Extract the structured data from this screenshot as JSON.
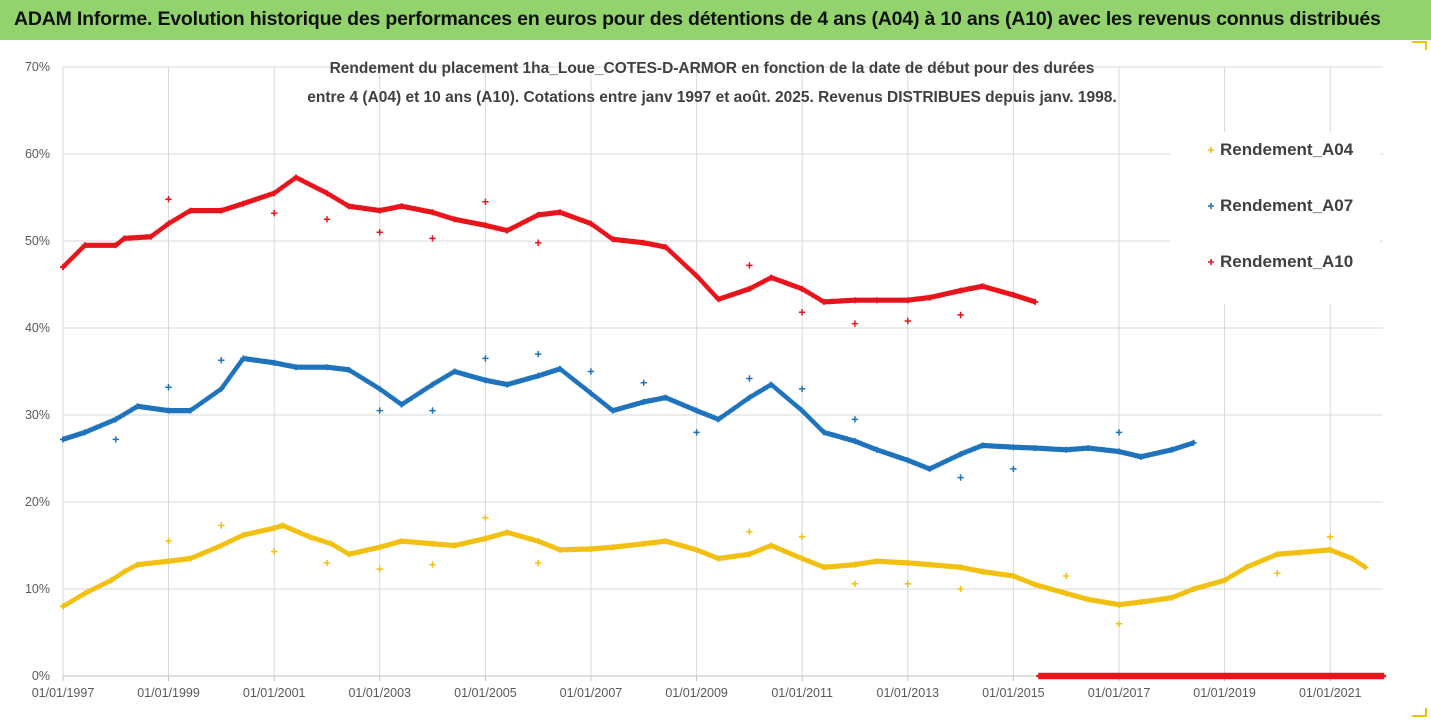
{
  "banner": {
    "title": "ADAM Informe. Evolution historique des performances en euros pour des détentions de 4 ans (A04) à 10 ans (A10) avec les revenus connus distribués"
  },
  "chart_data": {
    "type": "scatter",
    "title": "Rendement du placement 1ha_Loue_COTES-D-ARMOR en fonction de la date de début pour des durées",
    "subtitle": "entre 4 (A04) et 10 ans (A10). Cotations entre janv 1997 et août. 2025. Revenus DISTRIBUES depuis janv. 1998.",
    "xlabel": "",
    "ylabel": "",
    "x_range": [
      "1997-01-01",
      "2022-01-01"
    ],
    "ylim": [
      0,
      70
    ],
    "y_ticks": [
      "0%",
      "10%",
      "20%",
      "30%",
      "40%",
      "50%",
      "60%",
      "70%"
    ],
    "x_ticks": [
      "01/01/1997",
      "01/01/1999",
      "01/01/2001",
      "01/01/2003",
      "01/01/2005",
      "01/01/2007",
      "01/01/2009",
      "01/01/2011",
      "01/01/2013",
      "01/01/2015",
      "01/01/2017",
      "01/01/2019",
      "01/01/2021"
    ],
    "grid": true,
    "legend_position": "right",
    "series": [
      {
        "name": "Rendement_A04",
        "color": "#f2c010",
        "points": [
          [
            "1997-01",
            8.0
          ],
          [
            "1997-06",
            9.5
          ],
          [
            "1997-12",
            11.0
          ],
          [
            "1998-03",
            12.0
          ],
          [
            "1998-06",
            12.8
          ],
          [
            "1999-01",
            13.2
          ],
          [
            "1999-06",
            13.5
          ],
          [
            "2000-01",
            15.0
          ],
          [
            "2000-06",
            16.2
          ],
          [
            "2001-01",
            17.0
          ],
          [
            "2001-03",
            17.3
          ],
          [
            "2001-09",
            16.0
          ],
          [
            "2002-02",
            15.2
          ],
          [
            "2002-06",
            14.0
          ],
          [
            "2003-01",
            14.8
          ],
          [
            "2003-06",
            15.5
          ],
          [
            "2004-01",
            15.2
          ],
          [
            "2004-06",
            15.0
          ],
          [
            "2005-01",
            15.8
          ],
          [
            "2005-06",
            16.5
          ],
          [
            "2006-01",
            15.5
          ],
          [
            "2006-06",
            14.5
          ],
          [
            "2007-01",
            14.6
          ],
          [
            "2007-06",
            14.8
          ],
          [
            "2008-01",
            15.2
          ],
          [
            "2008-06",
            15.5
          ],
          [
            "2009-01",
            14.5
          ],
          [
            "2009-06",
            13.5
          ],
          [
            "2010-01",
            14.0
          ],
          [
            "2010-06",
            15.0
          ],
          [
            "2011-01",
            13.5
          ],
          [
            "2011-06",
            12.5
          ],
          [
            "2012-01",
            12.8
          ],
          [
            "2012-06",
            13.2
          ],
          [
            "2013-01",
            13.0
          ],
          [
            "2013-06",
            12.8
          ],
          [
            "2014-01",
            12.5
          ],
          [
            "2014-06",
            12.0
          ],
          [
            "2015-01",
            11.5
          ],
          [
            "2015-06",
            10.5
          ],
          [
            "2016-01",
            9.5
          ],
          [
            "2016-06",
            8.8
          ],
          [
            "2017-01",
            8.2
          ],
          [
            "2017-06",
            8.5
          ],
          [
            "2018-01",
            9.0
          ],
          [
            "2018-06",
            10.0
          ],
          [
            "2019-01",
            11.0
          ],
          [
            "2019-06",
            12.5
          ],
          [
            "2020-01",
            14.0
          ],
          [
            "2020-06",
            14.2
          ],
          [
            "2021-01",
            14.5
          ],
          [
            "2021-06",
            13.5
          ],
          [
            "2021-09",
            12.5
          ]
        ],
        "outliers": [
          [
            "1999-01",
            15.5
          ],
          [
            "2000-01",
            17.3
          ],
          [
            "2001-01",
            14.3
          ],
          [
            "2002-01",
            13.0
          ],
          [
            "2003-01",
            12.3
          ],
          [
            "2004-01",
            12.8
          ],
          [
            "2005-01",
            18.2
          ],
          [
            "2006-01",
            13.0
          ],
          [
            "2010-01",
            16.6
          ],
          [
            "2011-01",
            16.0
          ],
          [
            "2012-01",
            10.6
          ],
          [
            "2013-01",
            10.6
          ],
          [
            "2014-01",
            10.0
          ],
          [
            "2016-01",
            11.5
          ],
          [
            "2017-01",
            6.0
          ],
          [
            "2020-01",
            11.8
          ],
          [
            "2021-01",
            16.0
          ]
        ]
      },
      {
        "name": "Rendement_A07",
        "color": "#1f73bd",
        "points": [
          [
            "1997-01",
            27.2
          ],
          [
            "1997-06",
            28.0
          ],
          [
            "1998-01",
            29.5
          ],
          [
            "1998-06",
            31.0
          ],
          [
            "1999-01",
            30.5
          ],
          [
            "1999-06",
            30.5
          ],
          [
            "2000-01",
            33.0
          ],
          [
            "2000-06",
            36.5
          ],
          [
            "2001-01",
            36.0
          ],
          [
            "2001-06",
            35.5
          ],
          [
            "2002-01",
            35.5
          ],
          [
            "2002-06",
            35.2
          ],
          [
            "2003-01",
            33.0
          ],
          [
            "2003-06",
            31.2
          ],
          [
            "2004-01",
            33.5
          ],
          [
            "2004-06",
            35.0
          ],
          [
            "2005-01",
            34.0
          ],
          [
            "2005-06",
            33.5
          ],
          [
            "2006-01",
            34.5
          ],
          [
            "2006-06",
            35.3
          ],
          [
            "2007-01",
            32.5
          ],
          [
            "2007-06",
            30.5
          ],
          [
            "2008-01",
            31.5
          ],
          [
            "2008-06",
            32.0
          ],
          [
            "2009-01",
            30.5
          ],
          [
            "2009-06",
            29.5
          ],
          [
            "2010-01",
            32.0
          ],
          [
            "2010-06",
            33.5
          ],
          [
            "2011-01",
            30.5
          ],
          [
            "2011-06",
            28.0
          ],
          [
            "2012-01",
            27.0
          ],
          [
            "2012-06",
            26.0
          ],
          [
            "2013-01",
            24.8
          ],
          [
            "2013-06",
            23.8
          ],
          [
            "2014-01",
            25.5
          ],
          [
            "2014-06",
            26.5
          ],
          [
            "2015-01",
            26.3
          ],
          [
            "2015-06",
            26.2
          ],
          [
            "2016-01",
            26.0
          ],
          [
            "2016-06",
            26.2
          ],
          [
            "2017-01",
            25.8
          ],
          [
            "2017-06",
            25.2
          ],
          [
            "2018-01",
            26.0
          ],
          [
            "2018-06",
            26.8
          ]
        ],
        "outliers": [
          [
            "1998-01",
            27.2
          ],
          [
            "1999-01",
            33.2
          ],
          [
            "2000-01",
            36.3
          ],
          [
            "2003-01",
            30.5
          ],
          [
            "2004-01",
            30.5
          ],
          [
            "2005-01",
            36.5
          ],
          [
            "2006-01",
            37.0
          ],
          [
            "2007-01",
            35.0
          ],
          [
            "2008-01",
            33.7
          ],
          [
            "2009-01",
            28.0
          ],
          [
            "2010-01",
            34.2
          ],
          [
            "2011-01",
            33.0
          ],
          [
            "2012-01",
            29.5
          ],
          [
            "2014-01",
            22.8
          ],
          [
            "2015-01",
            23.8
          ],
          [
            "2017-01",
            28.0
          ]
        ]
      },
      {
        "name": "Rendement_A10",
        "color": "#e8141c",
        "points": [
          [
            "1997-01",
            47.0
          ],
          [
            "1997-06",
            49.5
          ],
          [
            "1998-01",
            49.5
          ],
          [
            "1998-03",
            50.3
          ],
          [
            "1998-09",
            50.5
          ],
          [
            "1999-01",
            52.0
          ],
          [
            "1999-06",
            53.5
          ],
          [
            "2000-01",
            53.5
          ],
          [
            "2000-06",
            54.3
          ],
          [
            "2001-01",
            55.5
          ],
          [
            "2001-06",
            57.3
          ],
          [
            "2002-01",
            55.5
          ],
          [
            "2002-06",
            54.0
          ],
          [
            "2003-01",
            53.5
          ],
          [
            "2003-06",
            54.0
          ],
          [
            "2004-01",
            53.3
          ],
          [
            "2004-06",
            52.5
          ],
          [
            "2005-01",
            51.8
          ],
          [
            "2005-06",
            51.2
          ],
          [
            "2006-01",
            53.0
          ],
          [
            "2006-06",
            53.3
          ],
          [
            "2007-01",
            52.0
          ],
          [
            "2007-06",
            50.2
          ],
          [
            "2008-01",
            49.8
          ],
          [
            "2008-06",
            49.3
          ],
          [
            "2009-01",
            46.0
          ],
          [
            "2009-06",
            43.3
          ],
          [
            "2010-01",
            44.5
          ],
          [
            "2010-06",
            45.8
          ],
          [
            "2011-01",
            44.5
          ],
          [
            "2011-06",
            43.0
          ],
          [
            "2012-01",
            43.2
          ],
          [
            "2012-06",
            43.2
          ],
          [
            "2013-01",
            43.2
          ],
          [
            "2013-06",
            43.5
          ],
          [
            "2014-01",
            44.3
          ],
          [
            "2014-06",
            44.8
          ],
          [
            "2015-01",
            43.8
          ],
          [
            "2015-06",
            43.0
          ]
        ],
        "outliers": [
          [
            "1999-01",
            54.8
          ],
          [
            "2001-01",
            53.2
          ],
          [
            "2002-01",
            52.5
          ],
          [
            "2003-01",
            51.0
          ],
          [
            "2004-01",
            50.3
          ],
          [
            "2005-01",
            54.5
          ],
          [
            "2006-01",
            49.8
          ],
          [
            "2010-01",
            47.2
          ],
          [
            "2011-01",
            41.8
          ],
          [
            "2012-01",
            40.5
          ],
          [
            "2013-01",
            40.8
          ],
          [
            "2014-01",
            41.5
          ]
        ],
        "zero_segment": [
          "2015-07",
          "2022-01"
        ]
      }
    ]
  }
}
